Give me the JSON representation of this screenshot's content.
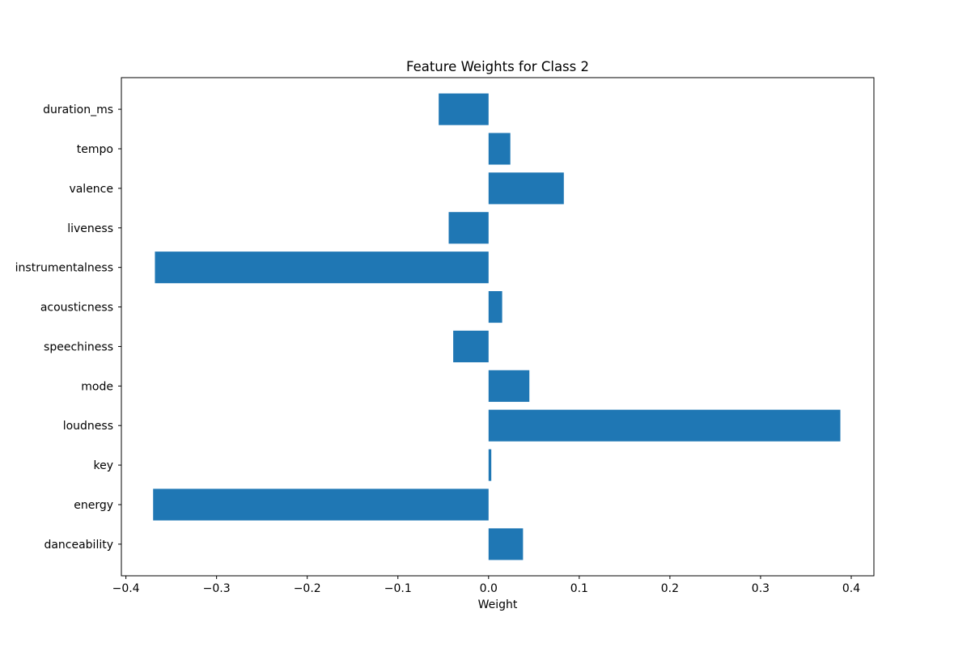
{
  "chart_data": {
    "type": "bar",
    "orientation": "horizontal",
    "title": "Feature Weights for Class 2",
    "xlabel": "Weight",
    "ylabel": "",
    "xlim": [
      -0.405,
      0.425
    ],
    "xticks": [
      -0.4,
      -0.3,
      -0.2,
      -0.1,
      0.0,
      0.1,
      0.2,
      0.3,
      0.4
    ],
    "xtick_labels": [
      "−0.4",
      "−0.3",
      "−0.2",
      "−0.1",
      "0.0",
      "0.1",
      "0.2",
      "0.3",
      "0.4"
    ],
    "categories": [
      "danceability",
      "energy",
      "key",
      "loudness",
      "mode",
      "speechiness",
      "acousticness",
      "instrumentalness",
      "liveness",
      "valence",
      "tempo",
      "duration_ms"
    ],
    "values": [
      0.038,
      -0.37,
      0.003,
      0.388,
      0.045,
      -0.039,
      0.015,
      -0.368,
      -0.044,
      0.083,
      0.024,
      -0.055
    ],
    "bar_color": "#1f77b4",
    "grid": false,
    "legend": "none"
  }
}
